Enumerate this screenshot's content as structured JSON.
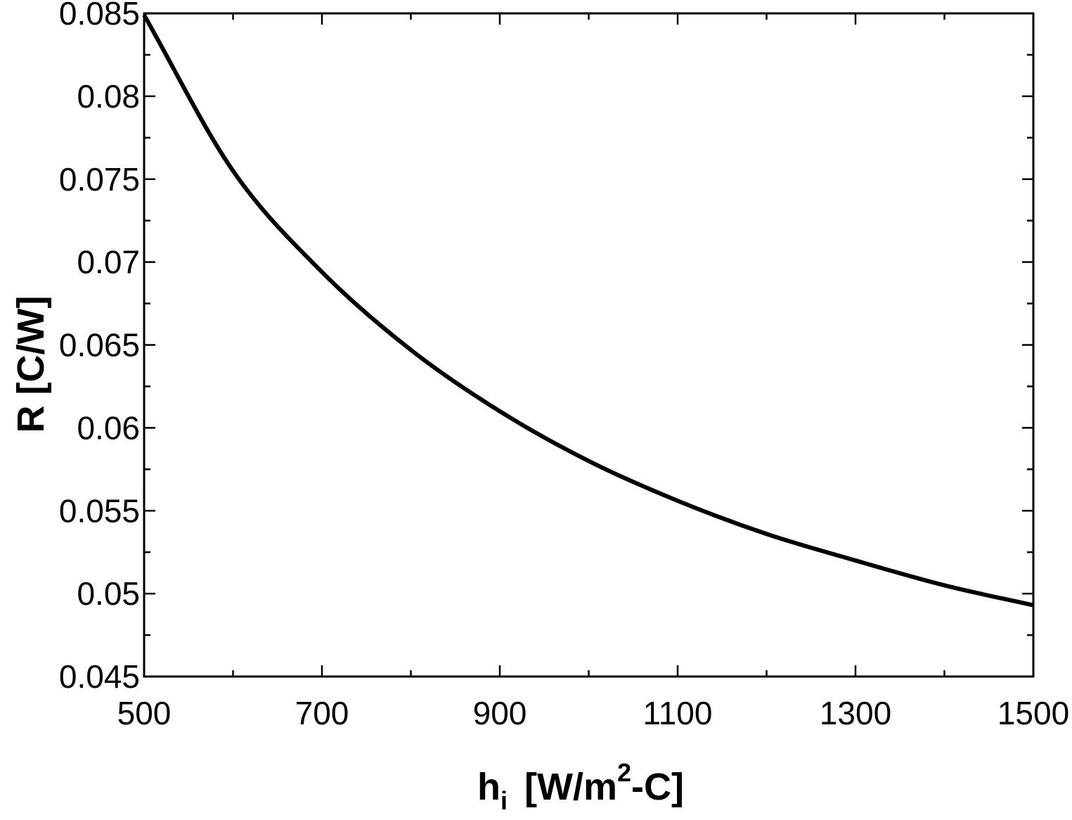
{
  "chart_data": {
    "type": "line",
    "title": "",
    "xlabel": {
      "symbol": "h",
      "subscript": "i",
      "unit_prefix": "[W/m",
      "superscript": "2",
      "unit_suffix": "-C]"
    },
    "ylabel": "R [C/W]",
    "xlim": [
      500,
      1500
    ],
    "ylim": [
      0.045,
      0.085
    ],
    "x_ticks": [
      500,
      700,
      900,
      1100,
      1300,
      1500
    ],
    "x_tick_labels": [
      "500",
      "700",
      "900",
      "1100",
      "1300",
      "1500"
    ],
    "x_minor_step": 100,
    "y_ticks": [
      0.045,
      0.05,
      0.055,
      0.06,
      0.065,
      0.07,
      0.075,
      0.08,
      0.085
    ],
    "y_tick_labels": [
      "0.045",
      "0.05",
      "0.055",
      "0.06",
      "0.065",
      "0.07",
      "0.075",
      "0.08",
      "0.085"
    ],
    "y_minor_step": 0.0025,
    "grid": false,
    "line_color": "#000000",
    "series": [
      {
        "x": [
          500,
          600,
          700,
          800,
          900,
          1000,
          1100,
          1200,
          1300,
          1400,
          1500
        ],
        "y": [
          0.0849,
          0.0755,
          0.0694,
          0.0647,
          0.061,
          0.058,
          0.0556,
          0.0536,
          0.052,
          0.0505,
          0.0493
        ]
      }
    ]
  }
}
